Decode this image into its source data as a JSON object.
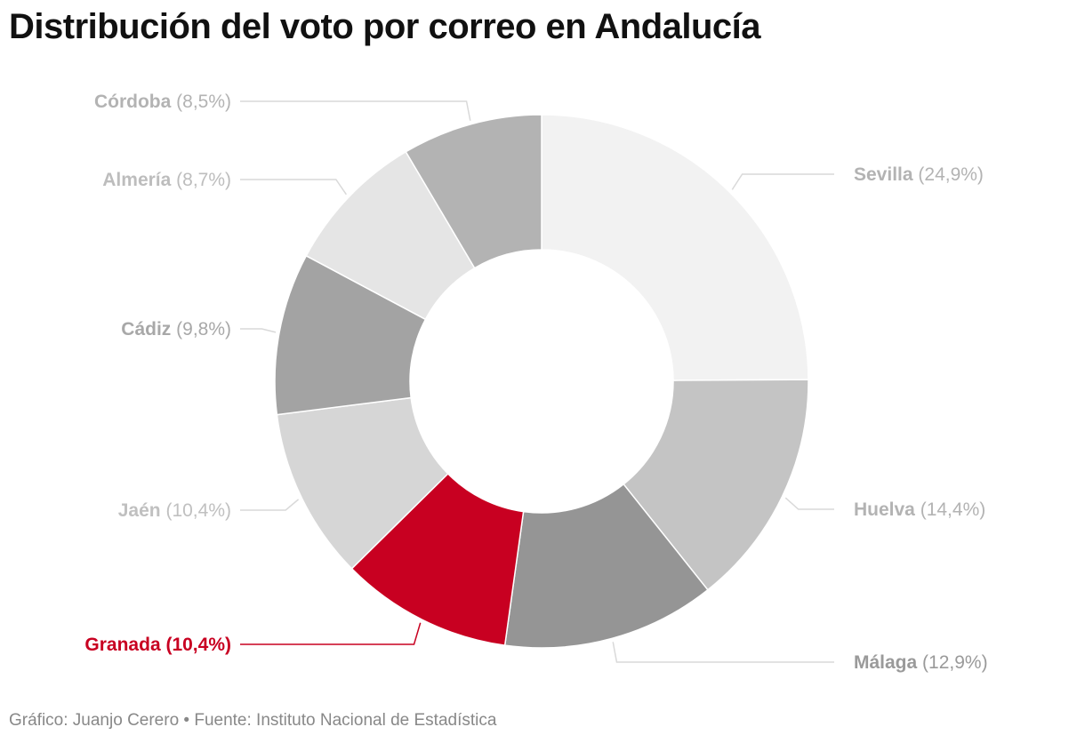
{
  "chart_data": {
    "type": "pie",
    "variant": "donut",
    "title": "Distribución del voto por correo en Andalucía",
    "slices": [
      {
        "name": "Sevilla",
        "value": 24.9,
        "value_label": "(24,9%)",
        "color": "#f2f2f2",
        "label_color": "#b3b3b3",
        "side": "right"
      },
      {
        "name": "Huelva",
        "value": 14.4,
        "value_label": "(14,4%)",
        "color": "#c4c4c4",
        "label_color": "#b3b3b3",
        "side": "right"
      },
      {
        "name": "Málaga",
        "value": 12.9,
        "value_label": "(12,9%)",
        "color": "#959595",
        "label_color": "#9a9a9a",
        "side": "right"
      },
      {
        "name": "Granada",
        "value": 10.4,
        "value_label": "(10,4%)",
        "color": "#c80021",
        "label_color": "#c80021",
        "side": "left",
        "highlight": true
      },
      {
        "name": "Jaén",
        "value": 10.4,
        "value_label": "(10,4%)",
        "color": "#d6d6d6",
        "label_color": "#c0c0c0",
        "side": "left"
      },
      {
        "name": "Cádiz",
        "value": 9.8,
        "value_label": "(9,8%)",
        "color": "#a3a3a3",
        "label_color": "#a8a8a8",
        "side": "left"
      },
      {
        "name": "Almería",
        "value": 8.7,
        "value_label": "(8,7%)",
        "color": "#e5e5e5",
        "label_color": "#bdbdbd",
        "side": "left"
      },
      {
        "name": "Córdoba",
        "value": 8.5,
        "value_label": "(8,5%)",
        "color": "#b3b3b3",
        "label_color": "#b3b3b3",
        "side": "left"
      }
    ]
  },
  "footer": "Gráfico: Juanjo Cerero • Fuente: Instituto Nacional de Estadística"
}
